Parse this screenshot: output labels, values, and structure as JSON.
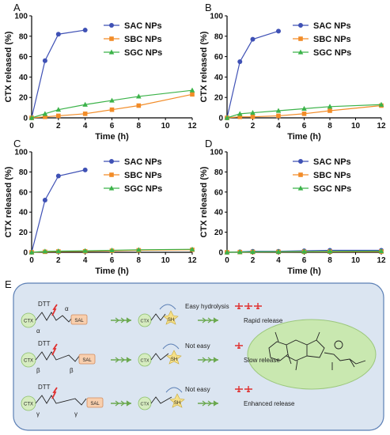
{
  "chart_data": [
    {
      "panel": "A",
      "type": "line",
      "xlabel": "Time (h)",
      "ylabel": "CTX released  (%)",
      "xlim": [
        0,
        12
      ],
      "ylim": [
        0,
        100
      ],
      "xticks": [
        0,
        2,
        4,
        6,
        8,
        10,
        12
      ],
      "yticks": [
        0,
        20,
        40,
        60,
        80,
        100
      ],
      "legend_position": "top-right",
      "series": [
        {
          "name": "SAC NPs",
          "color": "#3f51b5",
          "marker": "circle",
          "x": [
            0,
            1,
            2,
            4
          ],
          "y": [
            0,
            56,
            82,
            86
          ]
        },
        {
          "name": "SBC NPs",
          "color": "#f28c28",
          "marker": "square",
          "x": [
            0,
            1,
            2,
            4,
            6,
            8,
            12
          ],
          "y": [
            0,
            1,
            2,
            4,
            8,
            12,
            23
          ]
        },
        {
          "name": "SGC NPs",
          "color": "#3cb34a",
          "marker": "triangle",
          "x": [
            0,
            1,
            2,
            4,
            6,
            8,
            12
          ],
          "y": [
            0,
            4,
            8,
            13,
            17,
            21,
            27
          ]
        }
      ]
    },
    {
      "panel": "B",
      "type": "line",
      "xlabel": "Time (h)",
      "ylabel": "CTX released  (%)",
      "xlim": [
        0,
        12
      ],
      "ylim": [
        0,
        100
      ],
      "xticks": [
        0,
        2,
        4,
        6,
        8,
        10,
        12
      ],
      "yticks": [
        0,
        20,
        40,
        60,
        80,
        100
      ],
      "legend_position": "top-right",
      "series": [
        {
          "name": "SAC NPs",
          "color": "#3f51b5",
          "marker": "circle",
          "x": [
            0,
            1,
            2,
            4
          ],
          "y": [
            0,
            55,
            77,
            85
          ]
        },
        {
          "name": "SBC NPs",
          "color": "#f28c28",
          "marker": "square",
          "x": [
            0,
            1,
            2,
            4,
            6,
            8,
            12
          ],
          "y": [
            0,
            1,
            1,
            2,
            4,
            7,
            12
          ]
        },
        {
          "name": "SGC NPs",
          "color": "#3cb34a",
          "marker": "triangle",
          "x": [
            0,
            1,
            2,
            4,
            6,
            8,
            12
          ],
          "y": [
            0,
            4,
            5,
            7,
            9,
            11,
            13
          ]
        }
      ]
    },
    {
      "panel": "C",
      "type": "line",
      "xlabel": "Time (h)",
      "ylabel": "CTX released  (%)",
      "xlim": [
        0,
        12
      ],
      "ylim": [
        0,
        100
      ],
      "xticks": [
        0,
        2,
        4,
        6,
        8,
        10,
        12
      ],
      "yticks": [
        0,
        20,
        40,
        60,
        80,
        100
      ],
      "legend_position": "top-right",
      "series": [
        {
          "name": "SAC NPs",
          "color": "#3f51b5",
          "marker": "circle",
          "x": [
            0,
            1,
            2,
            4
          ],
          "y": [
            0,
            52,
            76,
            82
          ]
        },
        {
          "name": "SBC NPs",
          "color": "#f28c28",
          "marker": "square",
          "x": [
            0,
            1,
            2,
            4,
            6,
            8,
            12
          ],
          "y": [
            0,
            0.5,
            0.8,
            1,
            1.5,
            2,
            2.5
          ]
        },
        {
          "name": "SGC NPs",
          "color": "#3cb34a",
          "marker": "triangle",
          "x": [
            0,
            1,
            2,
            4,
            6,
            8,
            12
          ],
          "y": [
            0,
            1,
            1.2,
            1.5,
            2,
            2.5,
            3
          ]
        }
      ]
    },
    {
      "panel": "D",
      "type": "line",
      "xlabel": "Time (h)",
      "ylabel": "CTX released  (%)",
      "xlim": [
        0,
        12
      ],
      "ylim": [
        0,
        100
      ],
      "xticks": [
        0,
        2,
        4,
        6,
        8,
        10,
        12
      ],
      "yticks": [
        0,
        20,
        40,
        60,
        80,
        100
      ],
      "legend_position": "top-right",
      "series": [
        {
          "name": "SAC NPs",
          "color": "#3f51b5",
          "marker": "circle",
          "x": [
            0,
            1,
            2,
            4,
            6,
            8,
            12
          ],
          "y": [
            0,
            0.5,
            1,
            1,
            1.5,
            2,
            2
          ]
        },
        {
          "name": "SBC NPs",
          "color": "#f28c28",
          "marker": "square",
          "x": [
            0,
            1,
            2,
            4,
            6,
            8,
            12
          ],
          "y": [
            0,
            0.2,
            0.3,
            0.4,
            0.5,
            0.6,
            0.7
          ]
        },
        {
          "name": "SGC NPs",
          "color": "#3cb34a",
          "marker": "triangle",
          "x": [
            0,
            1,
            2,
            4,
            6,
            8,
            12
          ],
          "y": [
            0,
            0.3,
            0.5,
            0.6,
            0.8,
            1,
            1.2
          ]
        }
      ]
    }
  ],
  "scheme": {
    "panel": "E",
    "ctx_label": "CTX",
    "sal_label": "SAL",
    "sh_label": "SH",
    "colors": {
      "panel_bg": "#dbe5f1",
      "panel_border": "#5b7fb5",
      "ctx_bubble": "#d6ecc0",
      "sal_box": "#f8cfae",
      "arrow": "#6aa84f",
      "scissor": "#e0302f",
      "drug_bubble": "#c9e8b0"
    },
    "rows": [
      {
        "reagent": "DTT",
        "greek": [
          "α",
          "α"
        ],
        "outcome": "Easy hydrolysis",
        "release": "Rapid release",
        "plane_count": 3
      },
      {
        "reagent": "DTT",
        "greek": [
          "β",
          "β"
        ],
        "outcome": "Not easy",
        "release": "Slow release",
        "plane_count": 1
      },
      {
        "reagent": "DTT",
        "greek": [
          "γ",
          "γ"
        ],
        "outcome": "Not easy",
        "release": "Enhanced release",
        "plane_count": 2
      }
    ]
  }
}
